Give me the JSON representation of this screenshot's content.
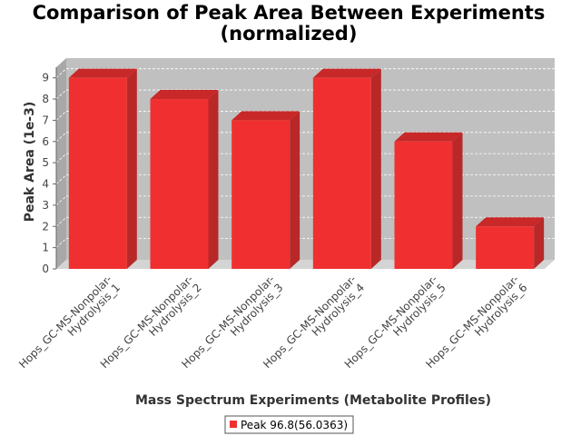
{
  "chart_data": {
    "type": "bar",
    "title_line1": "Comparison of Peak Area Between Experiments",
    "title_line2": "(normalized)",
    "xlabel": "Mass Spectrum Experiments (Metabolite Profiles)",
    "ylabel": "Peak Area (1e-3)",
    "categories": [
      [
        "Hops_GC-MS-Nonpolar-",
        "Hydrolysis_1"
      ],
      [
        "Hops_GC-MS-Nonpolar-",
        "Hydrolysis_2"
      ],
      [
        "Hops_GC-MS-Nonpolar-",
        "Hydrolysis_3"
      ],
      [
        "Hops_GC-MS-Nonpolar-",
        "Hydrolysis_4"
      ],
      [
        "Hops_GC-MS-Nonpolar-",
        "Hydrolysis_5"
      ],
      [
        "Hops_GC-MS-Nonpolar-",
        "Hydrolysis_6"
      ]
    ],
    "series": [
      {
        "name": "Peak 96.8(56.0363)",
        "values": [
          9,
          8,
          7,
          9,
          6,
          2
        ]
      }
    ],
    "ylim": [
      0,
      9.5
    ],
    "yticks": [
      "0",
      "1",
      "2",
      "3",
      "4",
      "5",
      "6",
      "7",
      "8",
      "9"
    ],
    "grid": true,
    "legend_position": "bottom",
    "colors": {
      "bar_front": "#f03030",
      "bar_side": "#b82828",
      "bar_top": "#c82828",
      "plot_back": "#c0c0c0",
      "plot_floor": "#d4d4d4",
      "plot_side": "#a8a8a8"
    }
  }
}
